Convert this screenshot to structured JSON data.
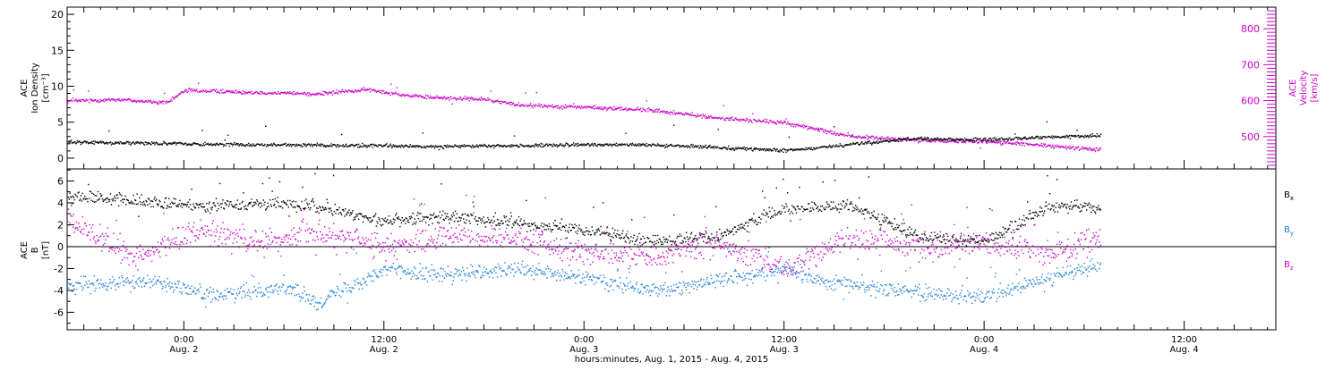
{
  "colors": {
    "black": "#000000",
    "magenta": "#cc00cc",
    "blue": "#1a7fd6"
  },
  "x_axis": {
    "title": "hours:minutes, Aug.  1, 2015 - Aug.  4, 2015",
    "start": "2015-08-01T17:00",
    "end": "2015-08-04T17:30",
    "data_end": "2015-08-04T07:00",
    "ticks": [
      {
        "time": "2015-08-02T00:00",
        "line1": "0:00",
        "line2": "Aug. 2"
      },
      {
        "time": "2015-08-02T12:00",
        "line1": "12:00",
        "line2": "Aug. 2"
      },
      {
        "time": "2015-08-03T00:00",
        "line1": "0:00",
        "line2": "Aug. 3"
      },
      {
        "time": "2015-08-03T12:00",
        "line1": "12:00",
        "line2": "Aug. 3"
      },
      {
        "time": "2015-08-04T00:00",
        "line1": "0:00",
        "line2": "Aug. 4"
      },
      {
        "time": "2015-08-04T12:00",
        "line1": "12:00",
        "line2": "Aug. 4"
      }
    ]
  },
  "chart_data": [
    {
      "type": "scatter",
      "panel": "top",
      "left_axis": {
        "label_lines": [
          "ACE",
          "Ion Density",
          "[cm⁻³]"
        ],
        "ylim": [
          -1.5,
          21
        ],
        "ticks": [
          0,
          5,
          10,
          15,
          20
        ],
        "color": "#000000"
      },
      "right_axis": {
        "label_lines": [
          "ACE",
          "Velocity",
          "[km/s]"
        ],
        "ylim": [
          410,
          860
        ],
        "ticks": [
          500,
          600,
          700,
          800
        ],
        "color": "#cc00cc"
      },
      "series": [
        {
          "axis": "left",
          "color": "#000000",
          "points": [
            [
              "2015-08-01T17:00",
              2.3
            ],
            [
              "2015-08-01T21:00",
              2.2
            ],
            [
              "2015-08-02T02:00",
              2.0
            ],
            [
              "2015-08-02T08:00",
              1.9
            ],
            [
              "2015-08-02T14:00",
              1.7
            ],
            [
              "2015-08-02T20:00",
              1.8
            ],
            [
              "2015-08-03T02:00",
              2.0
            ],
            [
              "2015-08-03T08:00",
              1.6
            ],
            [
              "2015-08-03T12:00",
              1.1
            ],
            [
              "2015-08-03T16:00",
              2.0
            ],
            [
              "2015-08-03T20:00",
              2.8
            ],
            [
              "2015-08-04T00:00",
              2.6
            ],
            [
              "2015-08-04T04:00",
              3.0
            ],
            [
              "2015-08-04T07:00",
              3.2
            ]
          ]
        },
        {
          "axis": "right",
          "color": "#cc00cc",
          "points": [
            [
              "2015-08-01T17:00",
              600
            ],
            [
              "2015-08-01T20:00",
              605
            ],
            [
              "2015-08-01T23:00",
              595
            ],
            [
              "2015-08-02T00:00",
              630
            ],
            [
              "2015-08-02T04:00",
              625
            ],
            [
              "2015-08-02T08:00",
              620
            ],
            [
              "2015-08-02T11:00",
              632
            ],
            [
              "2015-08-02T14:00",
              612
            ],
            [
              "2015-08-02T18:00",
              605
            ],
            [
              "2015-08-02T20:00",
              590
            ],
            [
              "2015-08-03T00:00",
              583
            ],
            [
              "2015-08-03T04:00",
              575
            ],
            [
              "2015-08-03T08:00",
              553
            ],
            [
              "2015-08-03T12:00",
              540
            ],
            [
              "2015-08-03T16:00",
              502
            ],
            [
              "2015-08-03T20:00",
              490
            ],
            [
              "2015-08-04T00:00",
              488
            ],
            [
              "2015-08-04T04:00",
              475
            ],
            [
              "2015-08-04T07:00",
              465
            ]
          ]
        }
      ]
    },
    {
      "type": "scatter",
      "panel": "bottom",
      "left_axis": {
        "label_lines": [
          "ACE",
          "B",
          "[nT]"
        ],
        "ylim": [
          -7.6,
          7.1
        ],
        "ticks": [
          -6,
          -4,
          -2,
          0,
          2,
          4,
          6
        ],
        "color": "#000000"
      },
      "zero_line": true,
      "series": [
        {
          "name": "Bx",
          "color": "#000000",
          "points": [
            [
              "2015-08-01T17:00",
              4.8
            ],
            [
              "2015-08-01T21:00",
              4.2
            ],
            [
              "2015-08-02T00:00",
              3.8
            ],
            [
              "2015-08-02T06:00",
              4.0
            ],
            [
              "2015-08-02T08:00",
              3.6
            ],
            [
              "2015-08-02T12:00",
              2.4
            ],
            [
              "2015-08-02T16:00",
              2.8
            ],
            [
              "2015-08-02T20:00",
              2.2
            ],
            [
              "2015-08-03T00:00",
              1.5
            ],
            [
              "2015-08-03T04:00",
              0.5
            ],
            [
              "2015-08-03T08:00",
              1.0
            ],
            [
              "2015-08-03T12:00",
              3.5
            ],
            [
              "2015-08-03T16:00",
              3.8
            ],
            [
              "2015-08-03T20:00",
              1.0
            ],
            [
              "2015-08-04T00:00",
              0.5
            ],
            [
              "2015-08-04T04:00",
              3.8
            ],
            [
              "2015-08-04T07:00",
              3.6
            ]
          ]
        },
        {
          "name": "By",
          "color": "#1a7fd6",
          "points": [
            [
              "2015-08-01T17:00",
              -3.5
            ],
            [
              "2015-08-01T22:00",
              -3.0
            ],
            [
              "2015-08-02T02:00",
              -4.5
            ],
            [
              "2015-08-02T06:00",
              -3.6
            ],
            [
              "2015-08-02T08:00",
              -5.0
            ],
            [
              "2015-08-02T12:00",
              -2.0
            ],
            [
              "2015-08-02T16:00",
              -2.6
            ],
            [
              "2015-08-02T20:00",
              -2.0
            ],
            [
              "2015-08-03T00:00",
              -2.8
            ],
            [
              "2015-08-03T04:00",
              -4.0
            ],
            [
              "2015-08-03T08:00",
              -3.0
            ],
            [
              "2015-08-03T12:00",
              -2.0
            ],
            [
              "2015-08-03T14:00",
              -3.0
            ],
            [
              "2015-08-03T18:00",
              -3.8
            ],
            [
              "2015-08-04T00:00",
              -4.6
            ],
            [
              "2015-08-04T04:00",
              -2.8
            ],
            [
              "2015-08-04T07:00",
              -1.5
            ]
          ]
        },
        {
          "name": "Bz",
          "color": "#cc00cc",
          "points": [
            [
              "2015-08-01T17:00",
              2.5
            ],
            [
              "2015-08-01T21:00",
              -1.0
            ],
            [
              "2015-08-02T01:00",
              1.5
            ],
            [
              "2015-08-02T05:00",
              0.5
            ],
            [
              "2015-08-02T08:00",
              1.5
            ],
            [
              "2015-08-02T12:00",
              0.0
            ],
            [
              "2015-08-02T16:00",
              1.0
            ],
            [
              "2015-08-02T20:00",
              0.8
            ],
            [
              "2015-08-03T00:00",
              -0.5
            ],
            [
              "2015-08-03T04:00",
              -1.0
            ],
            [
              "2015-08-03T08:00",
              0.5
            ],
            [
              "2015-08-03T12:00",
              -2.0
            ],
            [
              "2015-08-03T16:00",
              1.0
            ],
            [
              "2015-08-03T20:00",
              0.0
            ],
            [
              "2015-08-04T00:00",
              0.3
            ],
            [
              "2015-08-04T04:00",
              -0.5
            ],
            [
              "2015-08-04T07:00",
              0.8
            ]
          ]
        }
      ],
      "legend": [
        {
          "base": "B",
          "sub": "x",
          "color": "#000000"
        },
        {
          "base": "B",
          "sub": "y",
          "color": "#1a7fd6"
        },
        {
          "base": "B",
          "sub": "z",
          "color": "#cc00cc"
        }
      ]
    }
  ]
}
